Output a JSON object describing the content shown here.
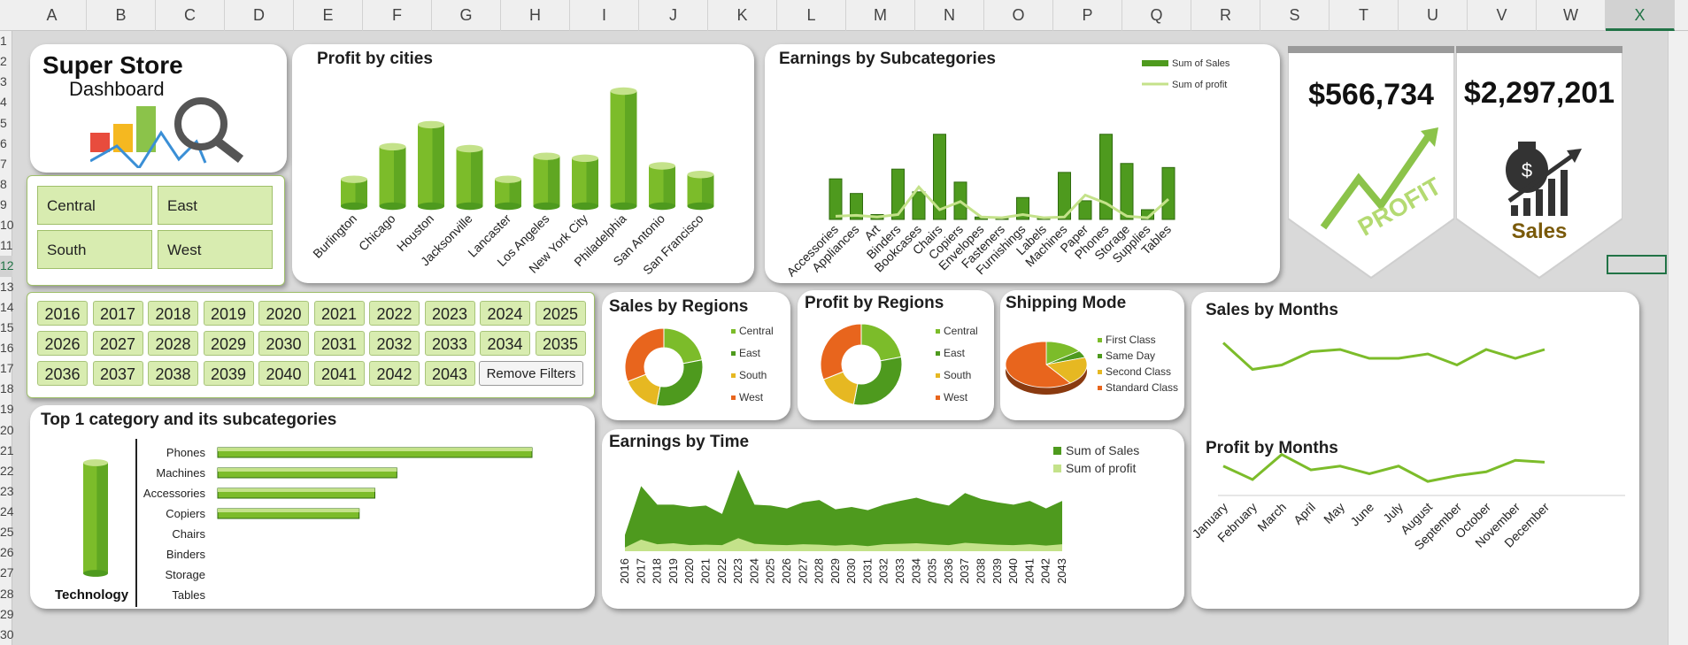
{
  "spreadsheet": {
    "columns": [
      "A",
      "B",
      "C",
      "D",
      "E",
      "F",
      "G",
      "H",
      "I",
      "J",
      "K",
      "L",
      "M",
      "N",
      "O",
      "P",
      "Q",
      "R",
      "S",
      "T",
      "U",
      "V",
      "W",
      "X"
    ],
    "selected_column": "X",
    "rows": [
      "1",
      "2",
      "3",
      "4",
      "5",
      "6",
      "7",
      "8",
      "9",
      "10",
      "11",
      "12",
      "13",
      "14",
      "15",
      "16",
      "17",
      "18",
      "19",
      "20",
      "21",
      "22",
      "23",
      "24",
      "25",
      "26",
      "27",
      "28",
      "29",
      "30"
    ],
    "selected_row": "12"
  },
  "header": {
    "title": "Super Store",
    "subtitle": "Dashboard"
  },
  "region_slicer": {
    "items": [
      "Central",
      "East",
      "South",
      "West"
    ]
  },
  "year_slicer": {
    "years": [
      "2016",
      "2017",
      "2018",
      "2019",
      "2020",
      "2021",
      "2022",
      "2023",
      "2024",
      "2025",
      "2026",
      "2027",
      "2028",
      "2029",
      "2030",
      "2031",
      "2032",
      "2033",
      "2034",
      "2035",
      "2036",
      "2037",
      "2038",
      "2039",
      "2040",
      "2041",
      "2042",
      "2043"
    ],
    "remove_filters_label": "Remove Filters"
  },
  "colors": {
    "green_dark": "#4e9a1e",
    "green_mid": "#7cbc2a",
    "green_light": "#c4e28a",
    "orange": "#e8651d",
    "yellow": "#e6b822",
    "sales_gold": "#7a5a0a"
  },
  "kpi": {
    "profit_value": "$566,734",
    "profit_label": "PROFIT",
    "sales_value": "$2,297,201",
    "sales_label": "Sales",
    "profit_icon": "trend-arrow-icon",
    "sales_icon": "money-bag-icon"
  },
  "chart_data": [
    {
      "id": "profit_by_cities",
      "type": "bar",
      "title": "Profit by cities",
      "categories": [
        "Burlington",
        "Chicago",
        "Houston",
        "Jacksonville",
        "Lancaster",
        "Los Angeles",
        "New York City",
        "Philadelphia",
        "San Antonio",
        "San Francisco"
      ],
      "values": [
        28,
        62,
        85,
        60,
        28,
        52,
        50,
        120,
        42,
        33
      ]
    },
    {
      "id": "earnings_by_subcategories",
      "type": "bar",
      "title": "Earnings by Subcategories",
      "categories": [
        "Accessories",
        "Appliances",
        "Art",
        "Binders",
        "Bookcases",
        "Chairs",
        "Copiers",
        "Envelopes",
        "Fasteners",
        "Furnishings",
        "Labels",
        "Machines",
        "Paper",
        "Phones",
        "Storage",
        "Supplies",
        "Tables"
      ],
      "series": [
        {
          "name": "Sum of Sales",
          "values": [
            50,
            32,
            6,
            62,
            34,
            105,
            46,
            3,
            1,
            27,
            2,
            58,
            23,
            105,
            69,
            12,
            64
          ]
        },
        {
          "name": "Sum of profit",
          "values": [
            4,
            5,
            3,
            6,
            40,
            12,
            22,
            3,
            2,
            6,
            2,
            3,
            30,
            20,
            4,
            2,
            25
          ]
        }
      ]
    },
    {
      "id": "sales_by_regions",
      "type": "pie",
      "title": "Sales by Regions",
      "categories": [
        "Central",
        "East",
        "South",
        "West"
      ],
      "values": [
        22,
        31,
        16,
        31
      ]
    },
    {
      "id": "profit_by_regions",
      "type": "pie",
      "title": "Profit by Regions",
      "categories": [
        "Central",
        "East",
        "South",
        "West"
      ],
      "values": [
        22,
        31,
        16,
        31
      ]
    },
    {
      "id": "shipping_mode",
      "type": "pie",
      "title": "Shipping Mode",
      "categories": [
        "First Class",
        "Same Day",
        "Second Class",
        "Standard Class"
      ],
      "values": [
        15,
        5,
        20,
        60
      ]
    },
    {
      "id": "sales_by_months",
      "type": "line",
      "title": "Sales by Months",
      "categories": [
        "January",
        "February",
        "March",
        "April",
        "May",
        "June",
        "July",
        "August",
        "September",
        "October",
        "November",
        "December"
      ],
      "values": [
        62,
        50,
        52,
        58,
        59,
        55,
        55,
        57,
        52,
        59,
        55,
        59
      ]
    },
    {
      "id": "profit_by_months",
      "type": "line",
      "title": "Profit by Months",
      "categories": [
        "January",
        "February",
        "March",
        "April",
        "May",
        "June",
        "July",
        "August",
        "September",
        "October",
        "November",
        "December"
      ],
      "values": [
        25,
        18,
        31,
        23,
        25,
        21,
        25,
        17,
        20,
        22,
        28,
        27
      ]
    },
    {
      "id": "earnings_by_time",
      "type": "area",
      "title": "Earnings by Time",
      "categories": [
        "2016",
        "2017",
        "2018",
        "2019",
        "2020",
        "2021",
        "2022",
        "2023",
        "2024",
        "2025",
        "2026",
        "2027",
        "2028",
        "2029",
        "2030",
        "2031",
        "2032",
        "2033",
        "2034",
        "2035",
        "2036",
        "2037",
        "2038",
        "2039",
        "2040",
        "2041",
        "2042",
        "2043"
      ],
      "series": [
        {
          "name": "Sum of Sales",
          "values": [
            35,
            140,
            100,
            100,
            95,
            98,
            80,
            175,
            100,
            98,
            92,
            105,
            110,
            90,
            95,
            88,
            100,
            108,
            115,
            105,
            98,
            125,
            112,
            105,
            100,
            108,
            92,
            108
          ]
        },
        {
          "name": "Sum of profit",
          "values": [
            8,
            25,
            15,
            17,
            13,
            14,
            13,
            28,
            16,
            14,
            13,
            15,
            14,
            12,
            14,
            11,
            15,
            16,
            17,
            15,
            13,
            18,
            16,
            14,
            13,
            15,
            12,
            15
          ]
        }
      ]
    },
    {
      "id": "top_category",
      "type": "bar",
      "title": "Top 1 category and its subcategories",
      "category_label": "Technology",
      "categories": [
        "Phones",
        "Machines",
        "Accessories",
        "Copiers",
        "Chairs",
        "Binders",
        "Storage",
        "Tables"
      ],
      "values": [
        100,
        57,
        50,
        45,
        0,
        0,
        0,
        0
      ]
    }
  ]
}
